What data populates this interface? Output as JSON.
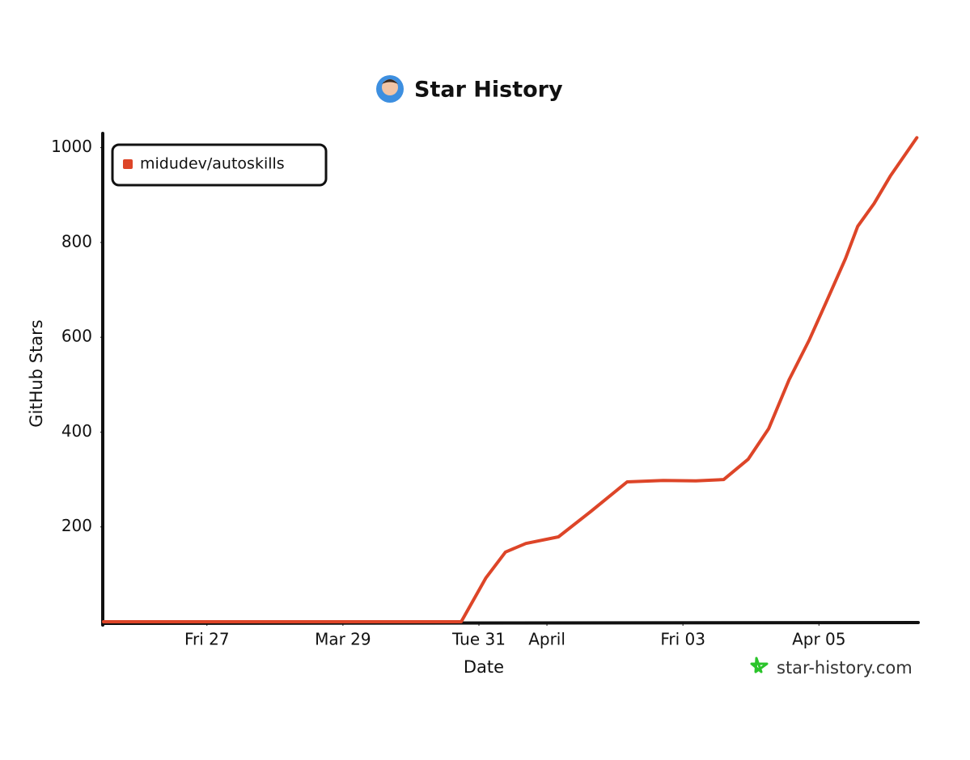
{
  "chart_data": {
    "type": "line",
    "title": "Star History",
    "x_label": "Date",
    "y_label": "GitHub Stars",
    "watermark": "star-history.com",
    "legend_position": "upper-left",
    "grid": false,
    "x": [
      25.48,
      30.74,
      31.1,
      31.39,
      31.69,
      32.17,
      32.64,
      33.18,
      33.71,
      34.19,
      34.6,
      34.96,
      35.26,
      35.56,
      35.86,
      36.1,
      36.39,
      36.57,
      36.81,
      37.05,
      37.44
    ],
    "series": [
      {
        "name": "midudev/autoskills",
        "color": "#dd4528",
        "values": [
          0,
          0,
          92,
          147,
          165,
          179,
          232,
          295,
          298,
          297,
          300,
          343,
          407,
          510,
          595,
          672,
          766,
          834,
          882,
          940,
          1021
        ]
      }
    ],
    "xlim": [
      25.48,
      37.46
    ],
    "xticks": [
      {
        "value": 27,
        "label": "Fri 27"
      },
      {
        "value": 29,
        "label": "Mar 29"
      },
      {
        "value": 31,
        "label": "Tue 31"
      },
      {
        "value": 32,
        "label": "April"
      },
      {
        "value": 34,
        "label": "Fri 03"
      },
      {
        "value": 36,
        "label": "Apr 05"
      }
    ],
    "ylim": [
      0,
      1030
    ],
    "yticks": [
      200,
      400,
      600,
      800,
      1000
    ]
  }
}
